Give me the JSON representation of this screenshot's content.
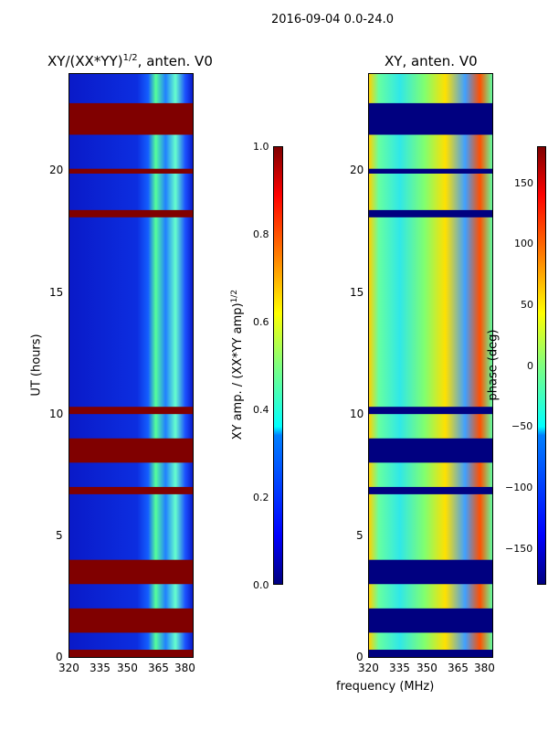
{
  "figure": {
    "suptitle": "2016-09-04 0.0-24.0",
    "xlabel": "frequency (MHz)"
  },
  "chart_data": [
    {
      "type": "heatmap",
      "title_base": "XY/(XX*YY)",
      "title_exp": "1/2",
      "title_rest": ", anten. V0",
      "ylabel": "UT (hours)",
      "xlim": [
        320,
        381
      ],
      "ylim": [
        0,
        24
      ],
      "xticks": [
        "320",
        "335",
        "350",
        "365",
        "380"
      ],
      "yticks": [
        "0",
        "5",
        "10",
        "15",
        "20"
      ],
      "colorbar": {
        "label": "XY amp. / (XX*YY amp)^1/2",
        "label_base": "XY amp. / (XX*YY amp)",
        "label_exp": "1/2",
        "range": [
          0.0,
          1.0
        ],
        "ticks": [
          "0.0",
          "0.2",
          "0.4",
          "0.6",
          "0.8",
          "1.0"
        ]
      },
      "flagged_bands_hours": [
        [
          21.5,
          22.8
        ],
        [
          19.9,
          20.1
        ],
        [
          18.1,
          18.4
        ],
        [
          10.0,
          10.3
        ],
        [
          8.0,
          9.0
        ],
        [
          6.7,
          7.0
        ],
        [
          3.0,
          4.0
        ],
        [
          1.0,
          2.0
        ],
        [
          0.0,
          0.3
        ]
      ],
      "flag_color": "#800000"
    },
    {
      "type": "heatmap",
      "title": "XY, anten. V0",
      "xlim": [
        320,
        381
      ],
      "ylim": [
        0,
        24
      ],
      "xticks": [
        "320",
        "335",
        "350",
        "365",
        "380"
      ],
      "yticks": [
        "0",
        "5",
        "10",
        "15",
        "20"
      ],
      "colorbar": {
        "label": "phase (deg)",
        "range": [
          -180,
          180
        ],
        "ticks": [
          "−150",
          "−100",
          "−50",
          "0",
          "50",
          "100",
          "150"
        ]
      },
      "flagged_bands_hours": [
        [
          21.5,
          22.8
        ],
        [
          19.9,
          20.1
        ],
        [
          18.1,
          18.4
        ],
        [
          10.0,
          10.3
        ],
        [
          8.0,
          9.0
        ],
        [
          6.7,
          7.0
        ],
        [
          3.0,
          4.0
        ],
        [
          1.0,
          2.0
        ],
        [
          0.0,
          0.3
        ]
      ],
      "flag_color": "#000080"
    }
  ]
}
